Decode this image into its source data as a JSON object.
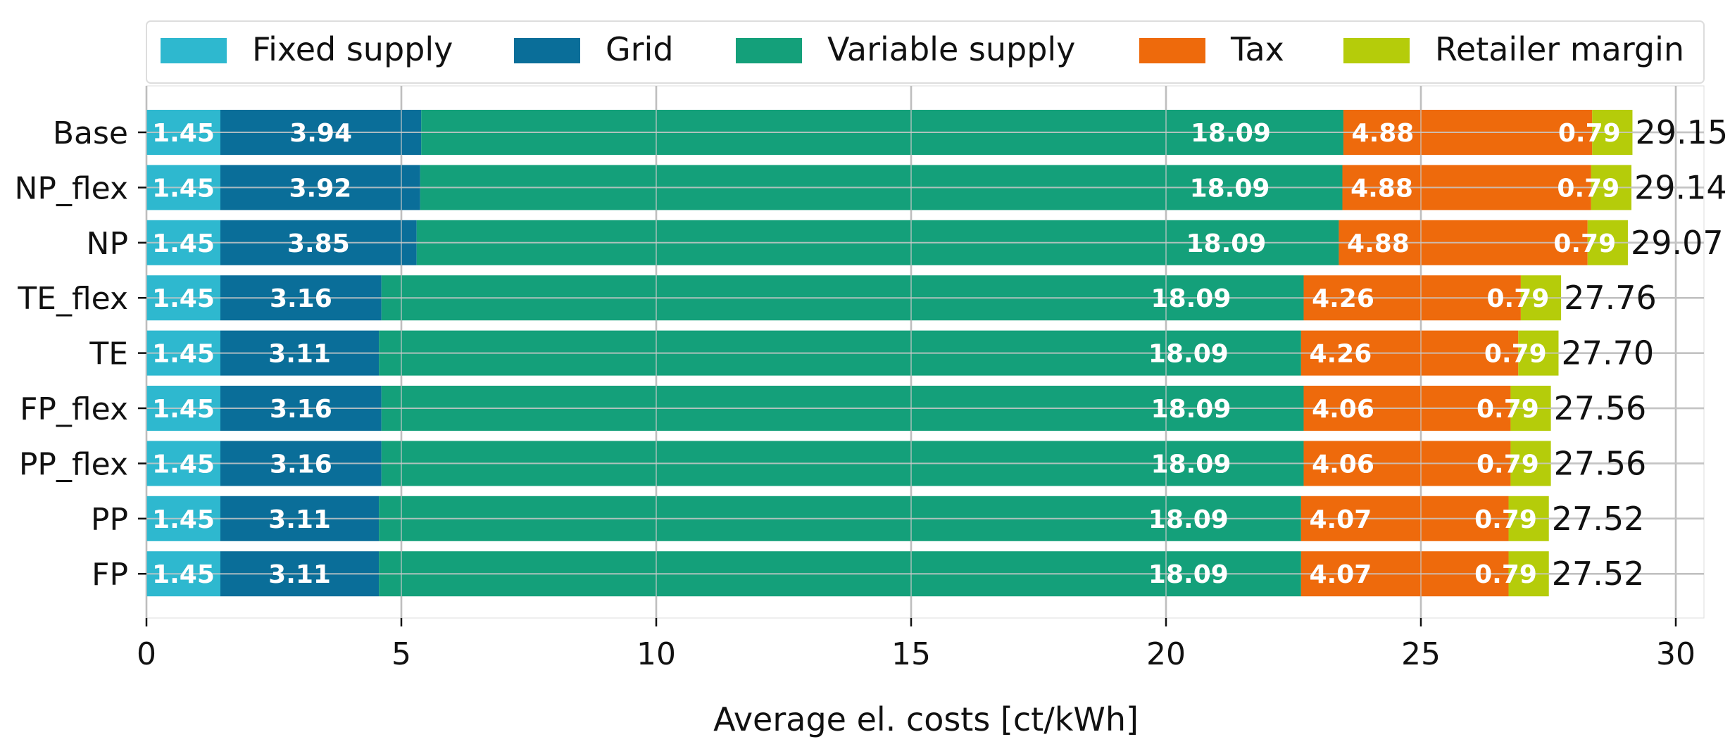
{
  "chart_data": {
    "type": "bar",
    "orientation": "horizontal",
    "stacked": true,
    "title": "",
    "xlabel": "Average el. costs [ct/kWh]",
    "ylabel": "",
    "xlim": [
      0,
      30
    ],
    "xticks": [
      0,
      5,
      10,
      15,
      20,
      25,
      30
    ],
    "grid": true,
    "legend_position": "top",
    "categories": [
      "Base",
      "NP_flex",
      "NP",
      "TE_flex",
      "TE",
      "FP_flex",
      "PP_flex",
      "PP",
      "FP"
    ],
    "series": [
      {
        "name": "Fixed supply",
        "color": "#2EB8CF",
        "values": [
          1.45,
          1.45,
          1.45,
          1.45,
          1.45,
          1.45,
          1.45,
          1.45,
          1.45
        ],
        "labels": [
          "1.45",
          "1.45",
          "1.45",
          "1.45",
          "1.45",
          "1.45",
          "1.45",
          "1.45",
          "1.45"
        ]
      },
      {
        "name": "Grid",
        "color": "#0A6E99",
        "values": [
          3.94,
          3.92,
          3.85,
          3.16,
          3.11,
          3.16,
          3.16,
          3.11,
          3.11
        ],
        "labels": [
          "3.94",
          "3.92",
          "3.85",
          "3.16",
          "3.11",
          "3.16",
          "3.16",
          "3.11",
          "3.11"
        ]
      },
      {
        "name": "Variable supply",
        "color": "#14A07A",
        "values": [
          18.09,
          18.09,
          18.09,
          18.09,
          18.09,
          18.09,
          18.09,
          18.09,
          18.09
        ],
        "labels": [
          "18.09",
          "18.09",
          "18.09",
          "18.09",
          "18.09",
          "18.09",
          "18.09",
          "18.09",
          "18.09"
        ]
      },
      {
        "name": "Tax",
        "color": "#EE6A0C",
        "values": [
          4.88,
          4.88,
          4.88,
          4.26,
          4.26,
          4.06,
          4.06,
          4.07,
          4.07
        ],
        "labels": [
          "4.88",
          "4.88",
          "4.88",
          "4.26",
          "4.26",
          "4.06",
          "4.06",
          "4.07",
          "4.07"
        ]
      },
      {
        "name": "Retailer margin",
        "color": "#B5CC0A",
        "values": [
          0.79,
          0.79,
          0.79,
          0.79,
          0.79,
          0.79,
          0.79,
          0.79,
          0.79
        ],
        "labels": [
          "0.79",
          "0.79",
          "0.79",
          "0.79",
          "0.79",
          "0.79",
          "0.79",
          "0.79",
          "0.79"
        ]
      }
    ],
    "totals": [
      "29.15",
      "29.14",
      "29.07",
      "27.76",
      "27.70",
      "27.56",
      "27.56",
      "27.52",
      "27.52"
    ]
  }
}
